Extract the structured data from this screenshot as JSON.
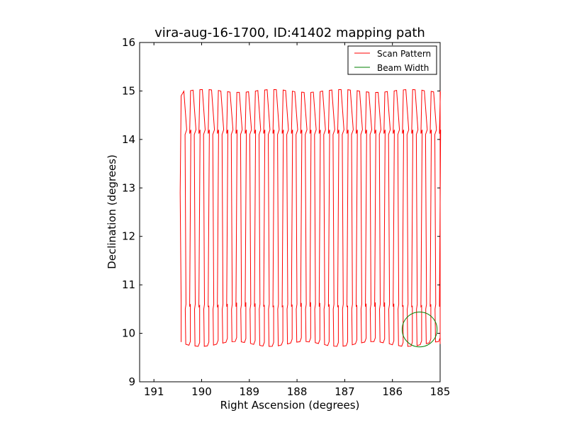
{
  "chart_data": {
    "type": "line",
    "title": "vira-aug-16-1700, ID:41402 mapping path",
    "xlabel": "Right Ascension (degrees)",
    "ylabel": "Declination (degrees)",
    "xlim": [
      191.3,
      185.0
    ],
    "ylim": [
      9,
      16
    ],
    "x_inverted": true,
    "xticks": [
      191,
      190,
      189,
      188,
      187,
      186,
      185
    ],
    "yticks": [
      9,
      10,
      11,
      12,
      13,
      14,
      15,
      16
    ],
    "grid": false,
    "legend_position": "upper right",
    "series": [
      {
        "name": "Scan Pattern",
        "color": "#ff0000",
        "pattern": "boustrophedon",
        "ra_start": 190.43,
        "ra_end": 185.0,
        "dec_min": 9.78,
        "dec_max": 15.0,
        "legs": 57
      },
      {
        "name": "Beam Width",
        "color": "#008000",
        "shape": "circle",
        "center_ra": 185.43,
        "center_dec": 10.08,
        "radius_deg": 0.36
      }
    ]
  }
}
